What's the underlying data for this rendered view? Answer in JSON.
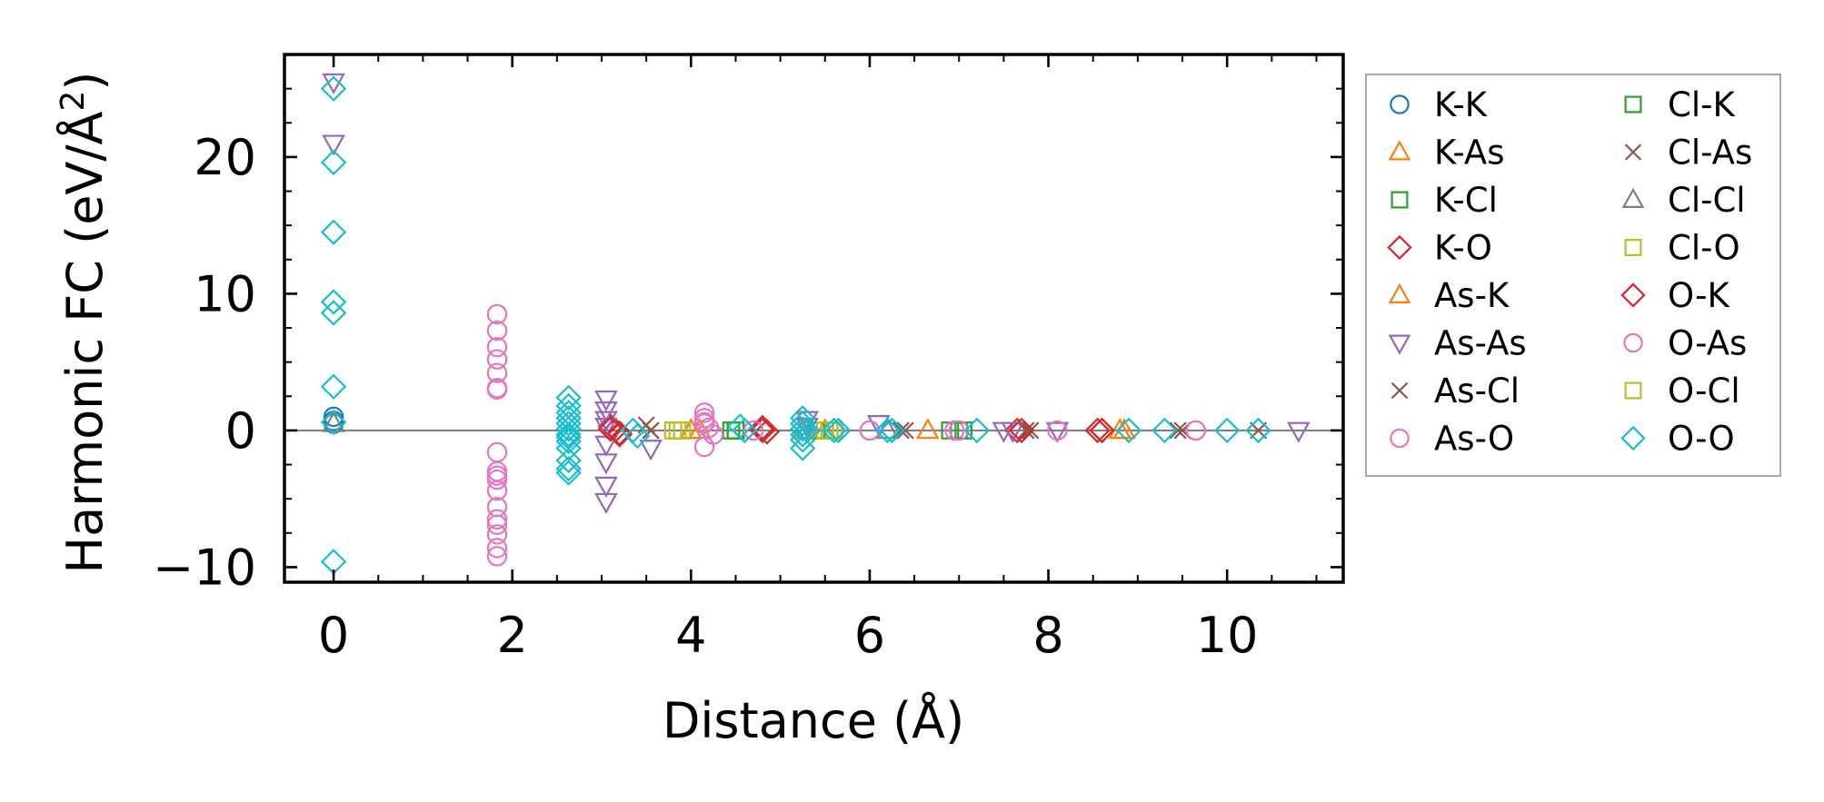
{
  "chart_data": {
    "type": "scatter",
    "xlabel": "Distance (Å)",
    "ylabel_main": "Harmonic FC (eV/Å",
    "ylabel_sup": "2",
    "ylabel_end": ")",
    "xlim": [
      -0.55,
      11.3
    ],
    "ylim": [
      -11.1,
      27.5
    ],
    "xticks": [
      0,
      2,
      4,
      6,
      8,
      10
    ],
    "yticks": [
      -10,
      0,
      10,
      20
    ],
    "xtick_labels": [
      "0",
      "2",
      "4",
      "6",
      "8",
      "10"
    ],
    "ytick_labels": [
      "−10",
      "0",
      "10",
      "20"
    ],
    "zero_line": true,
    "grid": false,
    "legend_position": "outside-right",
    "series": [
      {
        "name": "K-K",
        "marker": "circle",
        "color": "#1f77b4",
        "x": [
          0,
          0,
          0
        ],
        "y": [
          0.5,
          0.7,
          1.0
        ]
      },
      {
        "name": "K-As",
        "marker": "triangle-up",
        "color": "#ff7f0e",
        "x": [
          4.0,
          4.1,
          5.3,
          5.5,
          6.65,
          8.85
        ],
        "y": [
          0.0,
          0.0,
          0.0,
          0.0,
          0.0,
          0.0
        ]
      },
      {
        "name": "K-Cl",
        "marker": "square",
        "color": "#2ca02c",
        "x": [
          4.45,
          4.5,
          5.4,
          5.55,
          6.9,
          7.0
        ],
        "y": [
          0.0,
          0.0,
          0.0,
          0.0,
          0.0,
          0.0
        ]
      },
      {
        "name": "K-O",
        "marker": "diamond",
        "color": "#d62728",
        "x": [
          3.1,
          3.15,
          3.2,
          4.8,
          4.85,
          7.65,
          8.55,
          8.6
        ],
        "y": [
          0.3,
          0.0,
          -0.3,
          0.2,
          -0.1,
          0.0,
          0.0,
          0.0
        ]
      },
      {
        "name": "As-K",
        "marker": "triangle-up",
        "color": "#ff7f0e",
        "x": [
          4.0,
          5.25,
          8.8
        ],
        "y": [
          0.0,
          0.0,
          0.0
        ]
      },
      {
        "name": "As-As",
        "marker": "triangle-down",
        "color": "#9467bd",
        "x": [
          0,
          0,
          3.05,
          3.05,
          3.05,
          3.05,
          3.05,
          3.05,
          3.05,
          3.05,
          3.55,
          5.3,
          5.3,
          6.1,
          7.5,
          7.6,
          8.1,
          10.8
        ],
        "y": [
          25.5,
          21.0,
          2.3,
          1.5,
          0.8,
          0.3,
          -1.0,
          -2.3,
          -4.0,
          -5.2,
          -1.3,
          0.8,
          0.3,
          0.5,
          0.0,
          0.0,
          0.0,
          0.0
        ]
      },
      {
        "name": "As-Cl",
        "marker": "x",
        "color": "#8c564b",
        "x": [
          3.5,
          3.55,
          6.35,
          7.75,
          9.5,
          10.35
        ],
        "y": [
          0.4,
          0.0,
          0.0,
          0.0,
          0.0,
          0.0
        ]
      },
      {
        "name": "As-O",
        "marker": "circle",
        "color": "#e377c2",
        "x": [
          1.83,
          1.83,
          1.83,
          1.83,
          1.83,
          1.83,
          1.83,
          1.83,
          1.83,
          1.83,
          1.83,
          1.83,
          1.83,
          1.83,
          1.83,
          1.83,
          1.83,
          1.83,
          4.15,
          4.15,
          4.15,
          4.15,
          4.2,
          6.0,
          6.95,
          8.1,
          9.65
        ],
        "y": [
          8.5,
          7.3,
          6.1,
          5.2,
          4.2,
          3.1,
          3.0,
          -1.6,
          -3.0,
          -3.3,
          -3.6,
          -4.4,
          -5.6,
          -6.5,
          -6.9,
          -7.6,
          -8.6,
          -9.2,
          1.3,
          0.9,
          0.5,
          -1.2,
          0.2,
          0.0,
          0.0,
          0.0,
          0.0
        ]
      },
      {
        "name": "Cl-K",
        "marker": "square",
        "color": "#2ca02c",
        "x": [
          4.5,
          5.6,
          7.05
        ],
        "y": [
          0.0,
          0.0,
          0.0
        ]
      },
      {
        "name": "Cl-As",
        "marker": "x",
        "color": "#8c564b",
        "x": [
          3.55,
          6.4,
          7.8,
          9.45
        ],
        "y": [
          0.0,
          0.0,
          0.0,
          0.0
        ]
      },
      {
        "name": "Cl-Cl",
        "marker": "triangle-up",
        "color": "#7f7f7f",
        "x": [
          0,
          6.2
        ],
        "y": [
          0.5,
          0.0
        ]
      },
      {
        "name": "Cl-O",
        "marker": "square",
        "color": "#bcbd22",
        "x": [
          3.8,
          3.9,
          5.5,
          5.6
        ],
        "y": [
          0.0,
          0.0,
          0.0,
          0.0
        ]
      },
      {
        "name": "O-K",
        "marker": "diamond",
        "color": "#d62728",
        "x": [
          3.1,
          3.2,
          4.8,
          7.7,
          8.6
        ],
        "y": [
          0.1,
          -0.2,
          0.0,
          0.0,
          0.0
        ]
      },
      {
        "name": "O-As",
        "marker": "circle",
        "color": "#e377c2",
        "x": [
          4.15,
          4.25,
          4.7,
          6.0,
          7.0,
          9.65
        ],
        "y": [
          0.6,
          -0.3,
          0.0,
          0.0,
          0.0,
          0.0
        ]
      },
      {
        "name": "O-Cl",
        "marker": "square",
        "color": "#bcbd22",
        "x": [
          3.85,
          5.55
        ],
        "y": [
          0.0,
          0.0
        ]
      },
      {
        "name": "O-O",
        "marker": "diamond",
        "color": "#17becf",
        "x": [
          0,
          0,
          0,
          0,
          0,
          0,
          0,
          0,
          2.63,
          2.63,
          2.63,
          2.63,
          2.63,
          2.63,
          2.63,
          2.63,
          2.63,
          2.63,
          2.63,
          2.63,
          2.63,
          3.35,
          3.4,
          4.55,
          4.6,
          5.25,
          5.25,
          5.25,
          5.25,
          5.25,
          5.25,
          5.3,
          5.6,
          5.65,
          6.2,
          6.25,
          7.2,
          8.9,
          9.3,
          10.0,
          10.35
        ],
        "y": [
          25.0,
          19.6,
          14.5,
          9.4,
          8.6,
          3.2,
          0.6,
          -9.6,
          2.4,
          1.8,
          1.3,
          0.9,
          0.5,
          0.1,
          -0.3,
          -0.8,
          -1.3,
          -2.2,
          -3.1,
          -2.8,
          -0.5,
          0.0,
          -0.4,
          0.3,
          0.0,
          0.9,
          0.5,
          0.1,
          -0.3,
          -0.7,
          -1.3,
          0.0,
          0.0,
          0.0,
          0.0,
          0.0,
          0.0,
          0.0,
          0.0,
          0.0,
          0.0
        ]
      }
    ]
  }
}
